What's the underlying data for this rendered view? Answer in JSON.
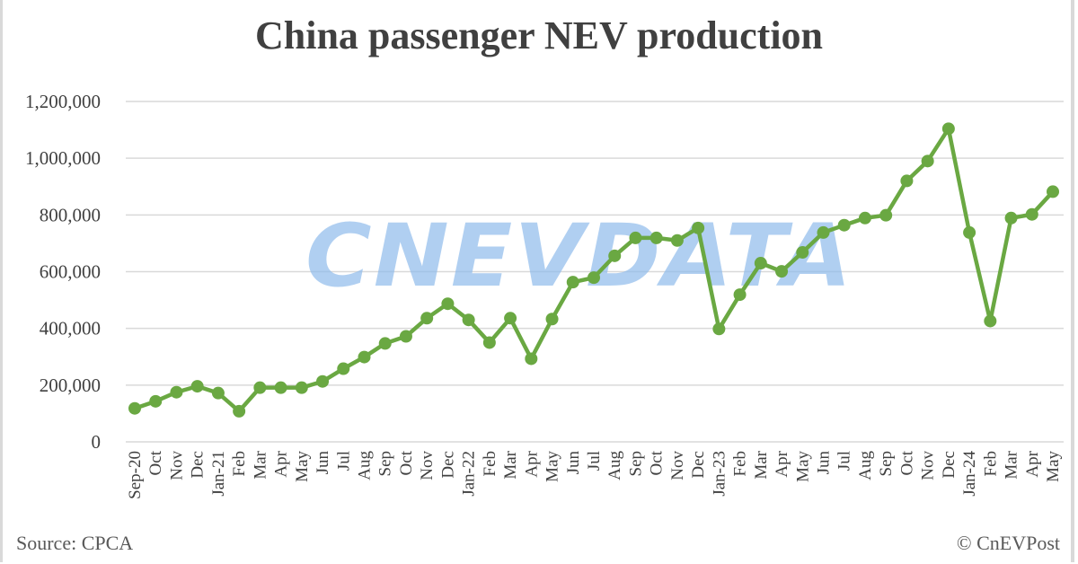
{
  "chart_data": {
    "type": "line",
    "title": "China passenger NEV production",
    "xlabel": "",
    "ylabel": "",
    "ylim": [
      0,
      1200000
    ],
    "yticks": [
      0,
      200000,
      400000,
      600000,
      800000,
      1000000,
      1200000
    ],
    "ytick_labels": [
      "0",
      "200,000",
      "400,000",
      "600,000",
      "800,000",
      "1,000,000",
      "1,200,000"
    ],
    "grid": "horizontal",
    "legend": "none",
    "colors": {
      "line": "#6aa842",
      "grid": "#d9d9d9",
      "watermark": "#8fbcec"
    },
    "categories": [
      "Sep-20",
      "Oct",
      "Nov",
      "Dec",
      "Jan-21",
      "Feb",
      "Mar",
      "Apr",
      "May",
      "Jun",
      "Jul",
      "Aug",
      "Sep",
      "Oct",
      "Nov",
      "Dec",
      "Jan-22",
      "Feb",
      "Mar",
      "Apr",
      "May",
      "Jun",
      "Jul",
      "Aug",
      "Sep",
      "Oct",
      "Nov",
      "Dec",
      "Jan-23",
      "Feb",
      "Mar",
      "Apr",
      "May",
      "Jun",
      "Jul",
      "Aug",
      "Sep",
      "Oct",
      "Nov",
      "Dec",
      "Jan-24",
      "Feb",
      "Mar",
      "Apr",
      "May"
    ],
    "series": [
      {
        "values": [
          118000,
          143000,
          175000,
          196000,
          172000,
          108000,
          191000,
          191000,
          191000,
          213000,
          258000,
          299000,
          347000,
          372000,
          436000,
          487000,
          430000,
          350000,
          436000,
          293000,
          433000,
          563000,
          579000,
          656000,
          719000,
          719000,
          710000,
          754000,
          398000,
          519000,
          630000,
          601000,
          668000,
          738000,
          764000,
          789000,
          799000,
          920000,
          990000,
          1104000,
          738000,
          426000,
          789000,
          802000,
          882000
        ]
      }
    ]
  },
  "footer": {
    "source": "Source: CPCA",
    "credit": "© CnEVPost"
  },
  "watermark": "CNEVDATA"
}
